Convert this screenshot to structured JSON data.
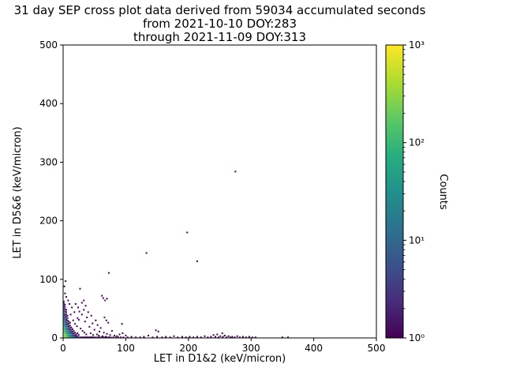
{
  "title": {
    "line1": "31 day SEP cross plot data derived from 59034 accumulated seconds",
    "line2": "from 2021-10-10 DOY:283",
    "line3": "through 2021-11-09 DOY:313"
  },
  "chart_data": {
    "type": "scatter",
    "title": "31 day SEP cross plot data derived from 59034 accumulated seconds from 2021-10-10 DOY:283 through 2021-11-09 DOY:313",
    "xlabel": "LET in D1&2 (keV/micron)",
    "ylabel": "LET in D5&6 (keV/micron)",
    "xlim": [
      0,
      500
    ],
    "ylim": [
      0,
      500
    ],
    "xticks": [
      0,
      100,
      200,
      300,
      400,
      500
    ],
    "yticks": [
      0,
      100,
      200,
      300,
      400,
      500
    ],
    "grid": false,
    "legend": "none",
    "colorbar": {
      "label": "Counts",
      "scale": "log",
      "min": 1,
      "max": 1000,
      "ticks": [
        "10⁰",
        "10¹",
        "10²",
        "10³"
      ],
      "colormap": "viridis",
      "colors": [
        "#440154",
        "#472d7b",
        "#3b528b",
        "#2c728e",
        "#21918c",
        "#28ae80",
        "#5ec962",
        "#addc30",
        "#fde725"
      ]
    },
    "points_format": [
      "x_keV_per_micron",
      "y_keV_per_micron",
      "counts"
    ],
    "points": [
      [
        1,
        1,
        850
      ],
      [
        1,
        3,
        600
      ],
      [
        1,
        5,
        420
      ],
      [
        1,
        8,
        260
      ],
      [
        1,
        11,
        170
      ],
      [
        1,
        14,
        120
      ],
      [
        1,
        17,
        90
      ],
      [
        1,
        20,
        68
      ],
      [
        1,
        23,
        52
      ],
      [
        1,
        26,
        40
      ],
      [
        1,
        29,
        30
      ],
      [
        1,
        32,
        23
      ],
      [
        1,
        35,
        18
      ],
      [
        1,
        38,
        13
      ],
      [
        1,
        41,
        10
      ],
      [
        1,
        44,
        8
      ],
      [
        1,
        47,
        6
      ],
      [
        1,
        50,
        5
      ],
      [
        1,
        53,
        4
      ],
      [
        1,
        56,
        3
      ],
      [
        1,
        59,
        2
      ],
      [
        1,
        62,
        1
      ],
      [
        3,
        1,
        520
      ],
      [
        3,
        3,
        360
      ],
      [
        3,
        5,
        250
      ],
      [
        3,
        8,
        150
      ],
      [
        3,
        11,
        92
      ],
      [
        3,
        14,
        60
      ],
      [
        3,
        17,
        40
      ],
      [
        3,
        20,
        27
      ],
      [
        3,
        23,
        18
      ],
      [
        3,
        26,
        12
      ],
      [
        3,
        29,
        9
      ],
      [
        3,
        32,
        6
      ],
      [
        3,
        35,
        4
      ],
      [
        3,
        38,
        3
      ],
      [
        3,
        41,
        2
      ],
      [
        3,
        45,
        2
      ],
      [
        3,
        49,
        1
      ],
      [
        3,
        53,
        1
      ],
      [
        3,
        57,
        1
      ],
      [
        5,
        1,
        320
      ],
      [
        5,
        3,
        210
      ],
      [
        5,
        5,
        140
      ],
      [
        5,
        8,
        80
      ],
      [
        5,
        11,
        46
      ],
      [
        5,
        14,
        28
      ],
      [
        5,
        17,
        17
      ],
      [
        5,
        20,
        11
      ],
      [
        5,
        23,
        7
      ],
      [
        5,
        26,
        5
      ],
      [
        5,
        29,
        3
      ],
      [
        5,
        32,
        2
      ],
      [
        5,
        36,
        2
      ],
      [
        5,
        40,
        1
      ],
      [
        5,
        44,
        1
      ],
      [
        5,
        48,
        1
      ],
      [
        7,
        1,
        190
      ],
      [
        7,
        3,
        120
      ],
      [
        7,
        5,
        76
      ],
      [
        7,
        8,
        42
      ],
      [
        7,
        11,
        23
      ],
      [
        7,
        14,
        13
      ],
      [
        7,
        17,
        8
      ],
      [
        7,
        20,
        5
      ],
      [
        7,
        23,
        3
      ],
      [
        7,
        26,
        2
      ],
      [
        7,
        30,
        1
      ],
      [
        7,
        34,
        1
      ],
      [
        7,
        38,
        1
      ],
      [
        9,
        1,
        115
      ],
      [
        9,
        3,
        70
      ],
      [
        9,
        5,
        42
      ],
      [
        9,
        8,
        22
      ],
      [
        9,
        11,
        11
      ],
      [
        9,
        14,
        6
      ],
      [
        9,
        17,
        4
      ],
      [
        9,
        20,
        2
      ],
      [
        9,
        24,
        1
      ],
      [
        9,
        28,
        1
      ],
      [
        11,
        1,
        70
      ],
      [
        11,
        3,
        40
      ],
      [
        11,
        5,
        23
      ],
      [
        11,
        8,
        11
      ],
      [
        11,
        11,
        6
      ],
      [
        11,
        14,
        3
      ],
      [
        11,
        17,
        2
      ],
      [
        11,
        21,
        1
      ],
      [
        11,
        26,
        1
      ],
      [
        13,
        1,
        42
      ],
      [
        13,
        3,
        24
      ],
      [
        13,
        5,
        13
      ],
      [
        13,
        8,
        6
      ],
      [
        13,
        11,
        3
      ],
      [
        13,
        14,
        2
      ],
      [
        13,
        18,
        1
      ],
      [
        15,
        1,
        26
      ],
      [
        15,
        3,
        14
      ],
      [
        15,
        5,
        7
      ],
      [
        15,
        8,
        3
      ],
      [
        15,
        11,
        2
      ],
      [
        15,
        15,
        1
      ],
      [
        17,
        1,
        16
      ],
      [
        17,
        3,
        8
      ],
      [
        17,
        5,
        4
      ],
      [
        17,
        8,
        2
      ],
      [
        17,
        12,
        1
      ],
      [
        19,
        1,
        10
      ],
      [
        19,
        3,
        5
      ],
      [
        19,
        5,
        2
      ],
      [
        19,
        9,
        1
      ],
      [
        21,
        1,
        7
      ],
      [
        21,
        3,
        3
      ],
      [
        21,
        6,
        1
      ],
      [
        23,
        1,
        5
      ],
      [
        23,
        3,
        2
      ],
      [
        23,
        8,
        1
      ],
      [
        25,
        1,
        4
      ],
      [
        25,
        5,
        1
      ],
      [
        27,
        1,
        3
      ],
      [
        29,
        1,
        2
      ],
      [
        31,
        1,
        2
      ],
      [
        33,
        1,
        1
      ],
      [
        35,
        1,
        2
      ],
      [
        37,
        1,
        1
      ],
      [
        39,
        1,
        1
      ],
      [
        41,
        1,
        2
      ],
      [
        43,
        1,
        1
      ],
      [
        45,
        1,
        1
      ],
      [
        47,
        1,
        1
      ],
      [
        49,
        1,
        2
      ],
      [
        52,
        1,
        1
      ],
      [
        55,
        1,
        1
      ],
      [
        58,
        1,
        1
      ],
      [
        61,
        1,
        1
      ],
      [
        64,
        1,
        1
      ],
      [
        67,
        1,
        1
      ],
      [
        70,
        1,
        1
      ],
      [
        73,
        1,
        1
      ],
      [
        76,
        1,
        1
      ],
      [
        80,
        1,
        1
      ],
      [
        84,
        1,
        1
      ],
      [
        88,
        1,
        1
      ],
      [
        92,
        1,
        1
      ],
      [
        96,
        1,
        1
      ],
      [
        103,
        1,
        1
      ],
      [
        109,
        2,
        1
      ],
      [
        116,
        1,
        1
      ],
      [
        123,
        1,
        1
      ],
      [
        129,
        2,
        1
      ],
      [
        136,
        4,
        1
      ],
      [
        143,
        1,
        1
      ],
      [
        148,
        13,
        1
      ],
      [
        152,
        11,
        1
      ],
      [
        150,
        2,
        1
      ],
      [
        158,
        1,
        1
      ],
      [
        164,
        2,
        1
      ],
      [
        171,
        1,
        1
      ],
      [
        177,
        3,
        1
      ],
      [
        183,
        1,
        1
      ],
      [
        190,
        2,
        1
      ],
      [
        196,
        1,
        1
      ],
      [
        202,
        2,
        1
      ],
      [
        208,
        1,
        1
      ],
      [
        214,
        2,
        1
      ],
      [
        220,
        1,
        1
      ],
      [
        226,
        3,
        1
      ],
      [
        231,
        1,
        1
      ],
      [
        236,
        2,
        1
      ],
      [
        240,
        5,
        1
      ],
      [
        243,
        2,
        1
      ],
      [
        246,
        6,
        1
      ],
      [
        248,
        1,
        1
      ],
      [
        251,
        3,
        1
      ],
      [
        254,
        8,
        1
      ],
      [
        255,
        2,
        1
      ],
      [
        258,
        4,
        1
      ],
      [
        261,
        1,
        1
      ],
      [
        264,
        3,
        1
      ],
      [
        267,
        1,
        1
      ],
      [
        270,
        2,
        1
      ],
      [
        274,
        1,
        1
      ],
      [
        278,
        3,
        1
      ],
      [
        282,
        1,
        1
      ],
      [
        287,
        2,
        1
      ],
      [
        292,
        1,
        1
      ],
      [
        297,
        2,
        1
      ],
      [
        302,
        1,
        1
      ],
      [
        307,
        1,
        1
      ],
      [
        350,
        1,
        1
      ],
      [
        359,
        1,
        1
      ],
      [
        275,
        284,
        1
      ],
      [
        198,
        180,
        1
      ],
      [
        214,
        131,
        1
      ],
      [
        133,
        145,
        1
      ],
      [
        73,
        111,
        1
      ],
      [
        4,
        97,
        1
      ],
      [
        27,
        84,
        1
      ],
      [
        64,
        68,
        1
      ],
      [
        67,
        64,
        2
      ],
      [
        70,
        67,
        1
      ],
      [
        62,
        72,
        1
      ],
      [
        2,
        88,
        1
      ],
      [
        3,
        76,
        1
      ],
      [
        5,
        70,
        1
      ],
      [
        8,
        64,
        1
      ],
      [
        10,
        58,
        1
      ],
      [
        14,
        52,
        1
      ],
      [
        12,
        40,
        1
      ],
      [
        18,
        44,
        1
      ],
      [
        20,
        58,
        1
      ],
      [
        24,
        52,
        1
      ],
      [
        26,
        45,
        1
      ],
      [
        30,
        40,
        1
      ],
      [
        33,
        48,
        1
      ],
      [
        36,
        55,
        1
      ],
      [
        38,
        35,
        1
      ],
      [
        40,
        44,
        1
      ],
      [
        45,
        38,
        1
      ],
      [
        47,
        25,
        1
      ],
      [
        52,
        30,
        1
      ],
      [
        55,
        22,
        1
      ],
      [
        35,
        28,
        1
      ],
      [
        25,
        31,
        1
      ],
      [
        23,
        34,
        1
      ],
      [
        16,
        30,
        1
      ],
      [
        19,
        24,
        1
      ],
      [
        22,
        20,
        1
      ],
      [
        28,
        16,
        1
      ],
      [
        31,
        12,
        1
      ],
      [
        34,
        9,
        1
      ],
      [
        37,
        6,
        1
      ],
      [
        42,
        19,
        1
      ],
      [
        44,
        8,
        1
      ],
      [
        48,
        5,
        1
      ],
      [
        50,
        14,
        1
      ],
      [
        54,
        6,
        1
      ],
      [
        57,
        4,
        1
      ],
      [
        58,
        11,
        1
      ],
      [
        60,
        17,
        1
      ],
      [
        63,
        3,
        1
      ],
      [
        65,
        9,
        1
      ],
      [
        66,
        35,
        2
      ],
      [
        68,
        2,
        1
      ],
      [
        69,
        30,
        1
      ],
      [
        70,
        7,
        1
      ],
      [
        72,
        26,
        1
      ],
      [
        75,
        5,
        1
      ],
      [
        78,
        12,
        1
      ],
      [
        82,
        4,
        1
      ],
      [
        86,
        3,
        1
      ],
      [
        90,
        6,
        1
      ],
      [
        94,
        24,
        1
      ],
      [
        95,
        8,
        1
      ],
      [
        100,
        4,
        1
      ],
      [
        30,
        60,
        1
      ],
      [
        33,
        64,
        1
      ]
    ]
  }
}
